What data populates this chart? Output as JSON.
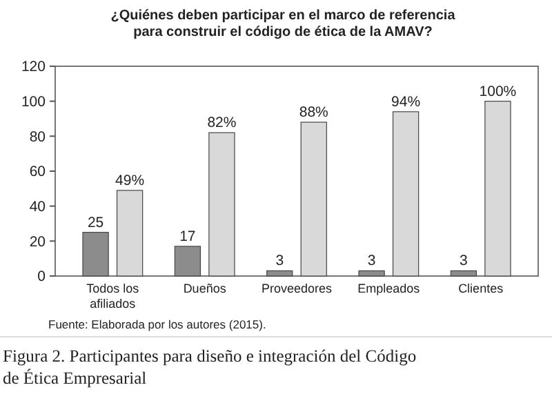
{
  "chart_data": {
    "type": "bar",
    "title": "¿Quiénes deben participar en el marco de referencia para construir el código de ética de la AMAV?",
    "categories": [
      "Todos los afiliados",
      "Dueños",
      "Proveedores",
      "Empleados",
      "Clientes"
    ],
    "series": [
      {
        "color": "#8c8c8c",
        "values": [
          25,
          17,
          3,
          3,
          3
        ],
        "value_labels": [
          "25",
          "17",
          "3",
          "3",
          "3"
        ]
      },
      {
        "color": "#d9d9d9",
        "values": [
          49,
          82,
          88,
          94,
          100
        ],
        "value_labels": [
          "49%",
          "82%",
          "88%",
          "94%",
          "100%"
        ]
      }
    ],
    "ylim": [
      0,
      120
    ],
    "yticks": [
      0,
      20,
      40,
      60,
      80,
      100,
      120
    ],
    "grid": false,
    "annotations": [
      "Fuente: Elaborada por los autores (2015).",
      "Figura 2. Participantes para diseño e integración del Código de Ética Empresarial"
    ]
  }
}
